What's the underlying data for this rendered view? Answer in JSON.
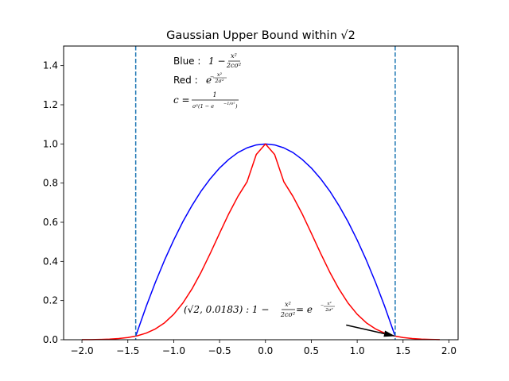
{
  "chart_data": {
    "type": "line",
    "title": "Gaussian Upper Bound within √2",
    "xlim": [
      -2.2,
      2.1
    ],
    "ylim": [
      0.0,
      1.5
    ],
    "xticks": [
      -2.0,
      -1.5,
      -1.0,
      -0.5,
      0.0,
      0.5,
      1.0,
      1.5,
      2.0
    ],
    "xtick_labels": [
      "−2.0",
      "−1.5",
      "−1.0",
      "−0.5",
      "0.0",
      "0.5",
      "1.0",
      "1.5",
      "2.0"
    ],
    "yticks": [
      0.0,
      0.2,
      0.4,
      0.6,
      0.8,
      1.0,
      1.2,
      1.4
    ],
    "ytick_labels": [
      "0.0",
      "0.2",
      "0.4",
      "0.6",
      "0.8",
      "1.0",
      "1.2",
      "1.4"
    ],
    "grid": false,
    "colors": {
      "blue": "#0000ff",
      "red": "#ff0000",
      "vline": "#1f77b4",
      "axis": "#000000"
    },
    "series": [
      {
        "color": "#0000ff",
        "x": [
          -1.4142,
          -1.3,
          -1.2,
          -1.1,
          -1.0,
          -0.9,
          -0.8,
          -0.7,
          -0.6,
          -0.5,
          -0.4,
          -0.3,
          -0.2,
          -0.1,
          0.0,
          0.1,
          0.2,
          0.3,
          0.4,
          0.5,
          0.6,
          0.7,
          0.8,
          0.9,
          1.0,
          1.1,
          1.2,
          1.3,
          1.4142
        ],
        "y": [
          0.018,
          0.17,
          0.293,
          0.406,
          0.509,
          0.603,
          0.686,
          0.76,
          0.823,
          0.877,
          0.921,
          0.956,
          0.98,
          0.995,
          1.0,
          0.995,
          0.98,
          0.956,
          0.921,
          0.877,
          0.823,
          0.76,
          0.686,
          0.603,
          0.509,
          0.406,
          0.293,
          0.17,
          0.018
        ]
      },
      {
        "color": "#ff0000",
        "x": [
          -2.0,
          -1.9,
          -1.8,
          -1.7,
          -1.6,
          -1.5,
          -1.4,
          -1.3,
          -1.2,
          -1.1,
          -1.0,
          -0.9,
          -0.8,
          -0.7,
          -0.6,
          -0.5,
          -0.4,
          -0.3,
          -0.2,
          -0.1,
          0.0,
          0.1,
          0.2,
          0.3,
          0.4,
          0.5,
          0.6,
          0.7,
          0.8,
          0.9,
          1.0,
          1.1,
          1.2,
          1.3,
          1.4,
          1.5,
          1.6,
          1.7,
          1.8,
          1.9
        ],
        "y": [
          0.0003,
          0.0007,
          0.0015,
          0.0031,
          0.006,
          0.0111,
          0.0198,
          0.0337,
          0.0551,
          0.0863,
          0.1299,
          0.1876,
          0.2601,
          0.3462,
          0.4427,
          0.544,
          0.6432,
          0.732,
          0.8071,
          0.9461,
          1.0,
          0.9461,
          0.8071,
          0.732,
          0.6432,
          0.544,
          0.4427,
          0.3462,
          0.2601,
          0.1876,
          0.1299,
          0.0863,
          0.0551,
          0.0337,
          0.0198,
          0.0111,
          0.006,
          0.0031,
          0.0015,
          0.0007
        ]
      }
    ],
    "vlines": [
      -1.4142,
      1.4142
    ],
    "arrow": {
      "from": [
        0.88,
        0.075
      ],
      "to": [
        1.4142,
        0.0183
      ]
    },
    "annotations": {
      "blue_label": "Blue : ",
      "blue_formula_lead": "1 − ",
      "blue_num": "x²",
      "blue_den": "2cσ²",
      "red_label": "Red : ",
      "red_base": "e",
      "red_exp_num": "x²",
      "red_exp_den": "2σ²",
      "c_lhs": "c = ",
      "c_num": "1",
      "c_den": "σ²(1 − e",
      "c_den_exp": "−1/σ²",
      "c_den_close": ")",
      "point_label": "(√2, 0.0183) : 1 − ",
      "point_num": "x²",
      "point_den": "2cσ²",
      "point_eq": " = e",
      "point_exp_num": "x²",
      "point_exp_den": "2σ²"
    }
  }
}
